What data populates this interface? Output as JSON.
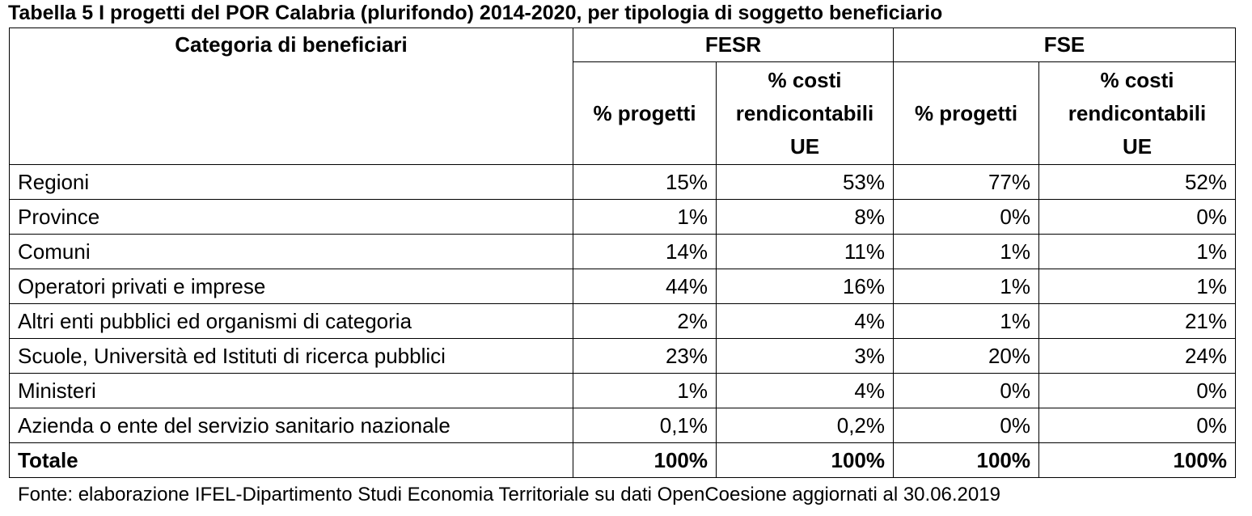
{
  "title": "Tabella 5 I progetti del POR Calabria (plurifondo) 2014-2020, per tipologia di soggetto beneficiario",
  "table": {
    "category_header": "Categoria di beneficiari",
    "groups": [
      "FESR",
      "FSE"
    ],
    "sub_headers": {
      "fesr_progetti": "% progetti",
      "fesr_costi": [
        "% costi",
        "rendicontabili",
        "UE"
      ],
      "fse_progetti": "% progetti",
      "fse_costi": [
        "% costi",
        "rendicontabili",
        "UE"
      ]
    },
    "rows": [
      {
        "label": "Regioni",
        "values": [
          "15%",
          "53%",
          "77%",
          "52%"
        ]
      },
      {
        "label": "Province",
        "values": [
          "1%",
          "8%",
          "0%",
          "0%"
        ]
      },
      {
        "label": "Comuni",
        "values": [
          "14%",
          "11%",
          "1%",
          "1%"
        ]
      },
      {
        "label": "Operatori privati e imprese",
        "values": [
          "44%",
          "16%",
          "1%",
          "1%"
        ]
      },
      {
        "label": "Altri enti pubblici ed organismi di categoria",
        "values": [
          "2%",
          "4%",
          "1%",
          "21%"
        ]
      },
      {
        "label": "Scuole, Università ed Istituti di ricerca pubblici",
        "values": [
          "23%",
          "3%",
          "20%",
          "24%"
        ]
      },
      {
        "label": "Ministeri",
        "values": [
          "1%",
          "4%",
          "0%",
          "0%"
        ]
      },
      {
        "label": "Azienda o ente del servizio sanitario nazionale",
        "values": [
          "0,1%",
          "0,2%",
          "0%",
          "0%"
        ]
      }
    ],
    "total": {
      "label": "Totale",
      "values": [
        "100%",
        "100%",
        "100%",
        "100%"
      ]
    }
  },
  "source": "Fonte: elaborazione IFEL-Dipartimento Studi Economia Territoriale su dati OpenCoesione aggiornati al 30.06.2019"
}
